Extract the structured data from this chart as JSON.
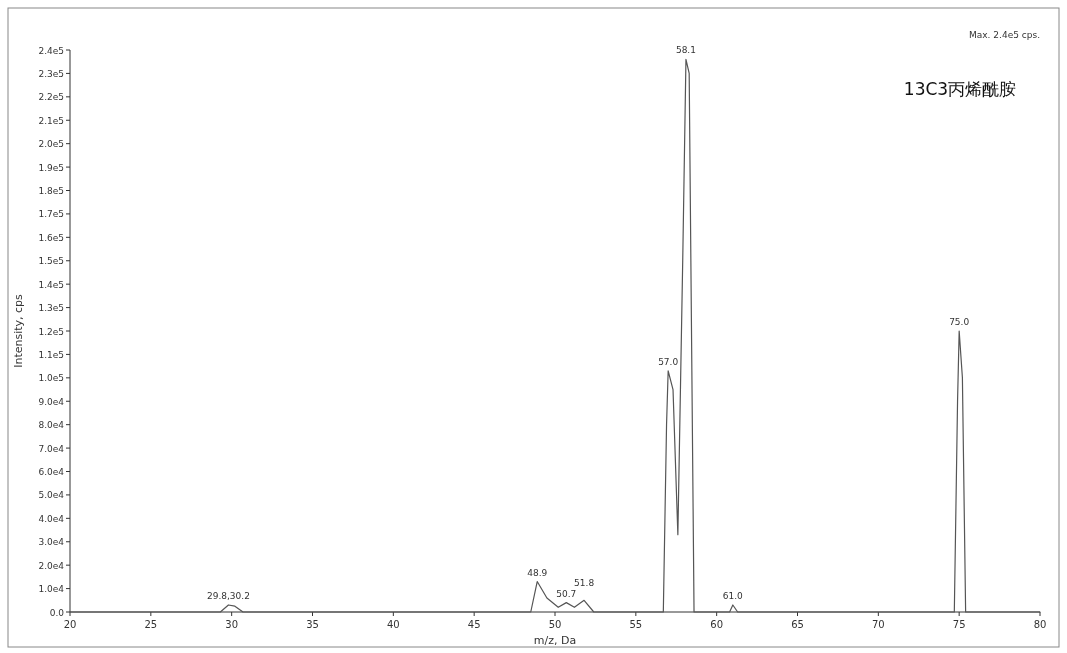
{
  "chart_data": {
    "type": "line",
    "xlabel": "m/z, Da",
    "ylabel": "Intensity, cps",
    "annotations": [
      "Max. 2.4e5 cps.",
      "13C3丙烯酰胺",
      {
        "text": "29.8,30.2",
        "x": 29.8,
        "y": 3000
      },
      {
        "text": "48.9",
        "x": 48.9,
        "y": 13000
      },
      {
        "text": "50.7",
        "x": 50.7,
        "y": 4000
      },
      {
        "text": "51.8",
        "x": 51.8,
        "y": 5000
      },
      {
        "text": "57.0",
        "x": 57.0,
        "y": 103000
      },
      {
        "text": "58.1",
        "x": 58.1,
        "y": 236000
      },
      {
        "text": "61.0",
        "x": 61.0,
        "y": 3000
      },
      {
        "text": "75.0",
        "x": 75.0,
        "y": 120000
      }
    ],
    "series": [
      {
        "color": "#555555",
        "x": [
          20,
          29.3,
          29.8,
          30.2,
          30.7,
          48.5,
          48.9,
          49.5,
          50.2,
          50.7,
          51.2,
          51.8,
          52.4,
          56.7,
          56.9,
          57.0,
          57.3,
          57.6,
          57.9,
          58.1,
          58.3,
          58.6,
          60.8,
          61.0,
          61.3,
          74.7,
          74.9,
          75.0,
          75.2,
          75.4,
          80
        ],
        "values": [
          0,
          0,
          3000,
          2500,
          0,
          0,
          13000,
          6000,
          2000,
          4000,
          2000,
          5000,
          0,
          0,
          80000,
          103000,
          95000,
          33000,
          150000,
          236000,
          230000,
          0,
          0,
          3000,
          0,
          0,
          90000,
          120000,
          100000,
          0,
          0
        ]
      }
    ],
    "xlim": [
      20,
      80
    ],
    "xticks": [
      20,
      25,
      30,
      35,
      40,
      45,
      50,
      55,
      60,
      65,
      70,
      75,
      80
    ],
    "ylim": [
      0,
      240000
    ],
    "yticks": [
      {
        "value": 0,
        "label": "0.0"
      },
      {
        "value": 10000,
        "label": "1.0e4"
      },
      {
        "value": 20000,
        "label": "2.0e4"
      },
      {
        "value": 30000,
        "label": "3.0e4"
      },
      {
        "value": 40000,
        "label": "4.0e4"
      },
      {
        "value": 50000,
        "label": "5.0e4"
      },
      {
        "value": 60000,
        "label": "6.0e4"
      },
      {
        "value": 70000,
        "label": "7.0e4"
      },
      {
        "value": 80000,
        "label": "8.0e4"
      },
      {
        "value": 90000,
        "label": "9.0e4"
      },
      {
        "value": 100000,
        "label": "1.0e5"
      },
      {
        "value": 110000,
        "label": "1.1e5"
      },
      {
        "value": 120000,
        "label": "1.2e5"
      },
      {
        "value": 130000,
        "label": "1.3e5"
      },
      {
        "value": 140000,
        "label": "1.4e5"
      },
      {
        "value": 150000,
        "label": "1.5e5"
      },
      {
        "value": 160000,
        "label": "1.6e5"
      },
      {
        "value": 170000,
        "label": "1.7e5"
      },
      {
        "value": 180000,
        "label": "1.8e5"
      },
      {
        "value": 190000,
        "label": "1.9e5"
      },
      {
        "value": 200000,
        "label": "2.0e5"
      },
      {
        "value": 210000,
        "label": "2.1e5"
      },
      {
        "value": 220000,
        "label": "2.2e5"
      },
      {
        "value": 230000,
        "label": "2.3e5"
      },
      {
        "value": 240000,
        "label": "2.4e5"
      }
    ],
    "grid": false,
    "marker": "none",
    "line_style": "solid"
  }
}
